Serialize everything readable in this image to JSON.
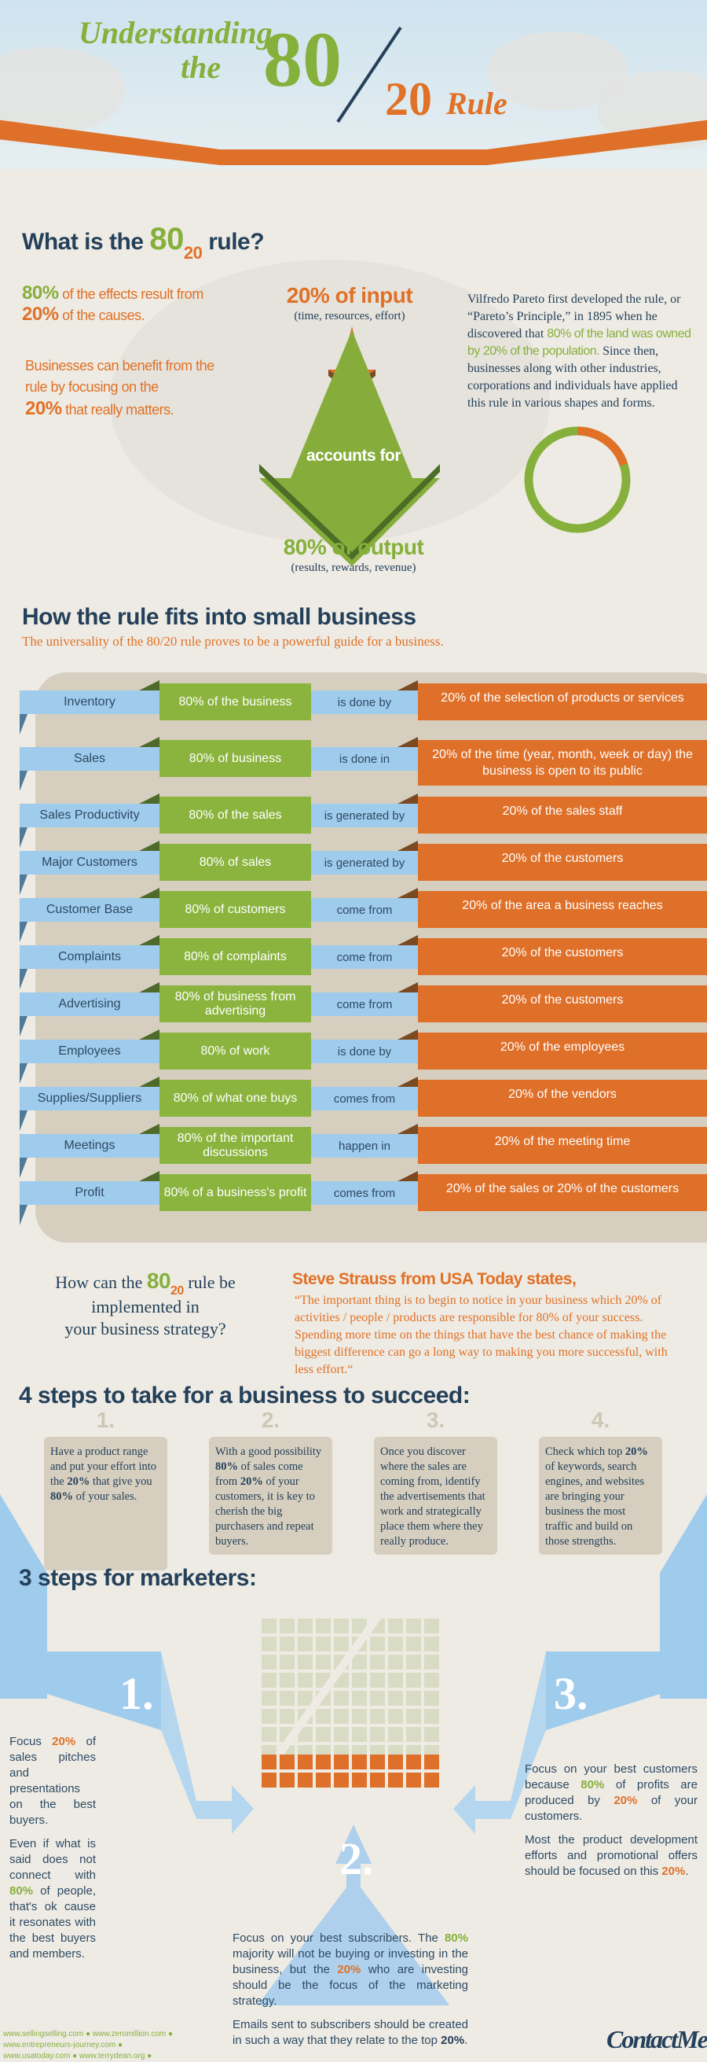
{
  "header": {
    "title_prefix": "Understanding",
    "title_the": "the",
    "title_80": "80",
    "title_20": "20",
    "title_rule": "Rule"
  },
  "what": {
    "heading_prefix": "What is the",
    "heading_80": "80",
    "heading_20": "20",
    "heading_suffix": "rule?",
    "effects": {
      "p80": "80%",
      "t1": "of the effects result from",
      "p20": "20%",
      "t2": "of the causes."
    },
    "benefit": {
      "t1": "Businesses can benefit from the rule by focusing on the",
      "p20": "20%",
      "t2": "that really matters."
    },
    "input_title": "20% of input",
    "input_sub": "(time, resources, effort)",
    "accounts_for": "accounts for",
    "output_title": "80% of output",
    "output_sub": "(results, rewards, revenue)",
    "pareto": {
      "t1": "Vilfredo Pareto first developed the rule, or “Pareto’s Principle,” in 1895 when he discovered that",
      "hl": "80% of the land was owned by 20% of the population.",
      "t2": "Since then, businesses along with other industries, corporations and individuals have applied this rule in various shapes and forms."
    },
    "ring": {
      "green_pct": 80,
      "orange_pct": 20,
      "green": "#86b03c",
      "orange": "#e07127"
    }
  },
  "small_business": {
    "heading": "How the rule fits into small business",
    "subtitle": "The universality of the 80/20 rule proves to be a powerful guide for a business.",
    "rows": [
      {
        "label": "Inventory",
        "eighty": "80% of the business",
        "verb": "is done by",
        "twenty": "20% of the selection of products or services"
      },
      {
        "label": "Sales",
        "eighty": "80% of business",
        "verb": "is done in",
        "twenty": "20% of the time (year, month, week or day) the business is open to its public"
      },
      {
        "label": "Sales Productivity",
        "eighty": "80% of the sales",
        "verb": "is generated by",
        "twenty": "20% of the sales staff"
      },
      {
        "label": "Major Customers",
        "eighty": "80% of sales",
        "verb": "is generated by",
        "twenty": "20% of the customers"
      },
      {
        "label": "Customer Base",
        "eighty": "80% of customers",
        "verb": "come from",
        "twenty": "20% of the area a business reaches"
      },
      {
        "label": "Complaints",
        "eighty": "80% of complaints",
        "verb": "come from",
        "twenty": "20% of the customers"
      },
      {
        "label": "Advertising",
        "eighty": "80% of business from advertising",
        "verb": "come from",
        "twenty": "20% of the customers"
      },
      {
        "label": "Employees",
        "eighty": "80% of work",
        "verb": "is done by",
        "twenty": "20% of the employees"
      },
      {
        "label": "Supplies/Suppliers",
        "eighty": "80% of what one buys",
        "verb": "comes from",
        "twenty": "20% of the vendors"
      },
      {
        "label": "Meetings",
        "eighty": "80% of the important discussions",
        "verb": "happen in",
        "twenty": "20% of the meeting time"
      },
      {
        "label": "Profit",
        "eighty": "80% of a business's profit",
        "verb": "comes from",
        "twenty": "20% of the sales or 20% of the customers"
      }
    ]
  },
  "implement": {
    "q1": "How  can the",
    "q80": "80",
    "q20": "20",
    "q2": "rule be",
    "q3": "implemented in",
    "q4": "your business strategy?"
  },
  "quote": {
    "attribution": "Steve Strauss from USA Today states,",
    "text": "“The important thing is to begin to notice in your business which 20% of activities / people / products are responsible for 80% of your success. Spending more time on the things that have the best chance of making the biggest difference can go a long way to making you more successful, with less effort.“"
  },
  "four_steps": {
    "heading": "4 steps to take for a business to succeed:",
    "steps": [
      {
        "num": "1.",
        "html": "Have a product range and put your effort into the <b>20%</b> that give you <b>80%</b> of your sales."
      },
      {
        "num": "2.",
        "html": "With a good possibility <b>80%</b> of sales come from <b>20%</b> of your customers, it is key to cherish the big purchasers and repeat buyers."
      },
      {
        "num": "3.",
        "html": "Once you discover where the sales are coming from, identify the advertisements that work and strategically place them where they really produce."
      },
      {
        "num": "4.",
        "html": "Check which top <b>20%</b> of keywords, search engines, and websites are bringing your business the most traffic and build on those strengths."
      }
    ]
  },
  "marketers": {
    "heading": "3 steps for marketers:",
    "grid": {
      "light_cells": 80,
      "orange_cells": 20
    },
    "step1": {
      "num": "1.",
      "p1": "Focus <b class='o'>20%</b> of sales pitches and presentations on the best buyers.",
      "p2": "Even if what is said does not connect with <b class='g'>80%</b> of people, that's ok cause it resonates with the best buyers and members."
    },
    "step2": {
      "num": "2.",
      "p1": "Focus on your best subscribers. The <b class='g'>80%</b> majority will not be buying or investing in the business, but the <b class='o'>20%</b> who are investing should be the focus of the marketing strategy.",
      "p2": "Emails sent to subscribers should be created in such a way that they relate to the top <b class='n'>20%</b>."
    },
    "step3": {
      "num": "3.",
      "p1": "Focus on your best customers because <b class='g'>80%</b> of profits are produced by <b class='o'>20%</b> of your customers.",
      "p2": "Most the product development efforts and promotional offers should be focused on this <b class='o'>20%</b>."
    }
  },
  "footer": {
    "links": [
      "www.sellingselling.com",
      "www.zeromillion.com",
      "www.entrepreneurs-journey.com",
      "www.usatoday.com",
      "www.terrydean.org"
    ],
    "logo": "ContactMe"
  }
}
